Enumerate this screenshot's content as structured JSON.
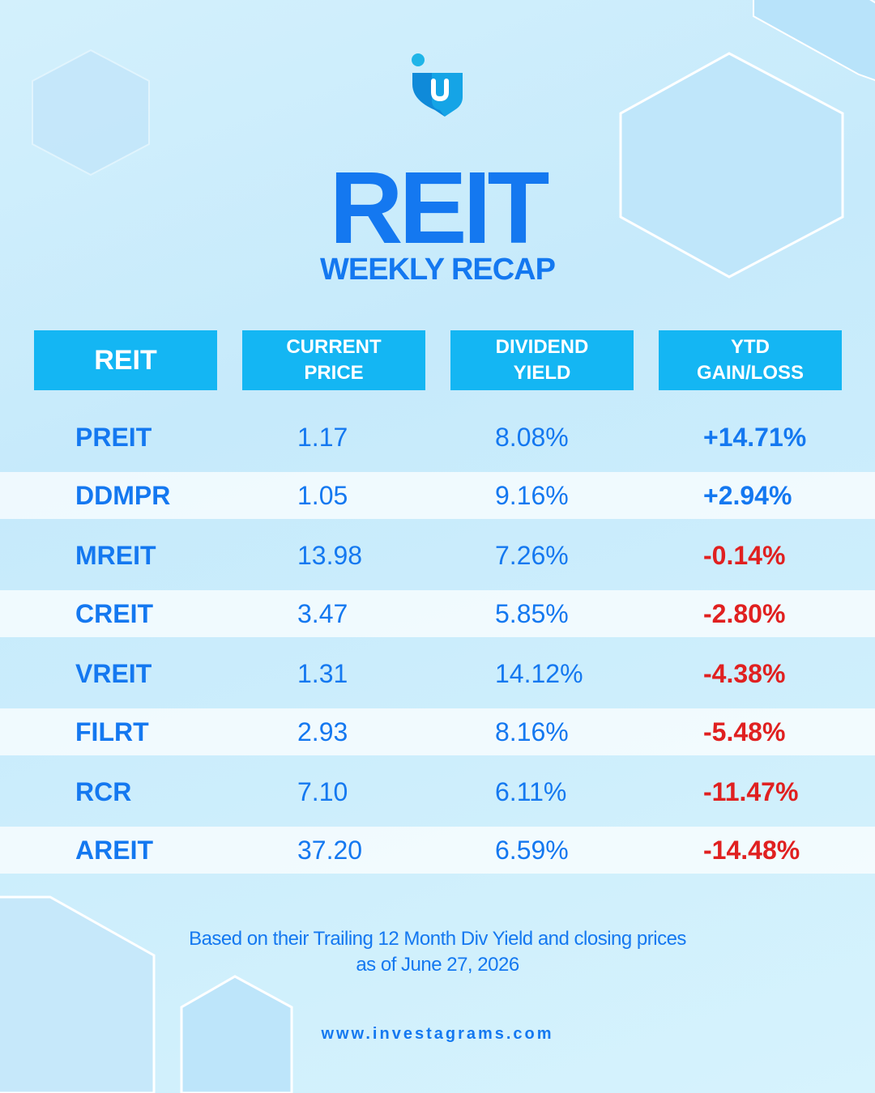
{
  "title": "REIT",
  "subtitle": "WEEKLY RECAP",
  "colors": {
    "accent": "#1478f0",
    "header_bg": "#14b6f3",
    "negative": "#e02020",
    "background": "#cdeefc"
  },
  "logo": {
    "icon": "investagrams-logo-icon"
  },
  "table": {
    "headers": [
      {
        "line1": "REIT",
        "line2": ""
      },
      {
        "line1": "CURRENT",
        "line2": "PRICE"
      },
      {
        "line1": "DIVIDEND",
        "line2": "YIELD"
      },
      {
        "line1": "YTD",
        "line2": "GAIN/LOSS"
      }
    ],
    "rows": [
      {
        "reit": "PREIT",
        "price": "1.17",
        "yield": "8.08%",
        "ytd": "+14.71%"
      },
      {
        "reit": "DDMPR",
        "price": "1.05",
        "yield": "9.16%",
        "ytd": "+2.94%"
      },
      {
        "reit": "MREIT",
        "price": "13.98",
        "yield": "7.26%",
        "ytd": "-0.14%"
      },
      {
        "reit": "CREIT",
        "price": "3.47",
        "yield": "5.85%",
        "ytd": "-2.80%"
      },
      {
        "reit": "VREIT",
        "price": "1.31",
        "yield": "14.12%",
        "ytd": "-4.38%"
      },
      {
        "reit": "FILRT",
        "price": "2.93",
        "yield": "8.16%",
        "ytd": "-5.48%"
      },
      {
        "reit": "RCR",
        "price": "7.10",
        "yield": "6.11%",
        "ytd": "-11.47%"
      },
      {
        "reit": "AREIT",
        "price": "37.20",
        "yield": "6.59%",
        "ytd": "-14.48%"
      }
    ]
  },
  "footnote": {
    "line1": "Based on their Trailing 12 Month Div Yield and closing prices",
    "line2": "as of June 27, 2026"
  },
  "website": "www.investagrams.com"
}
